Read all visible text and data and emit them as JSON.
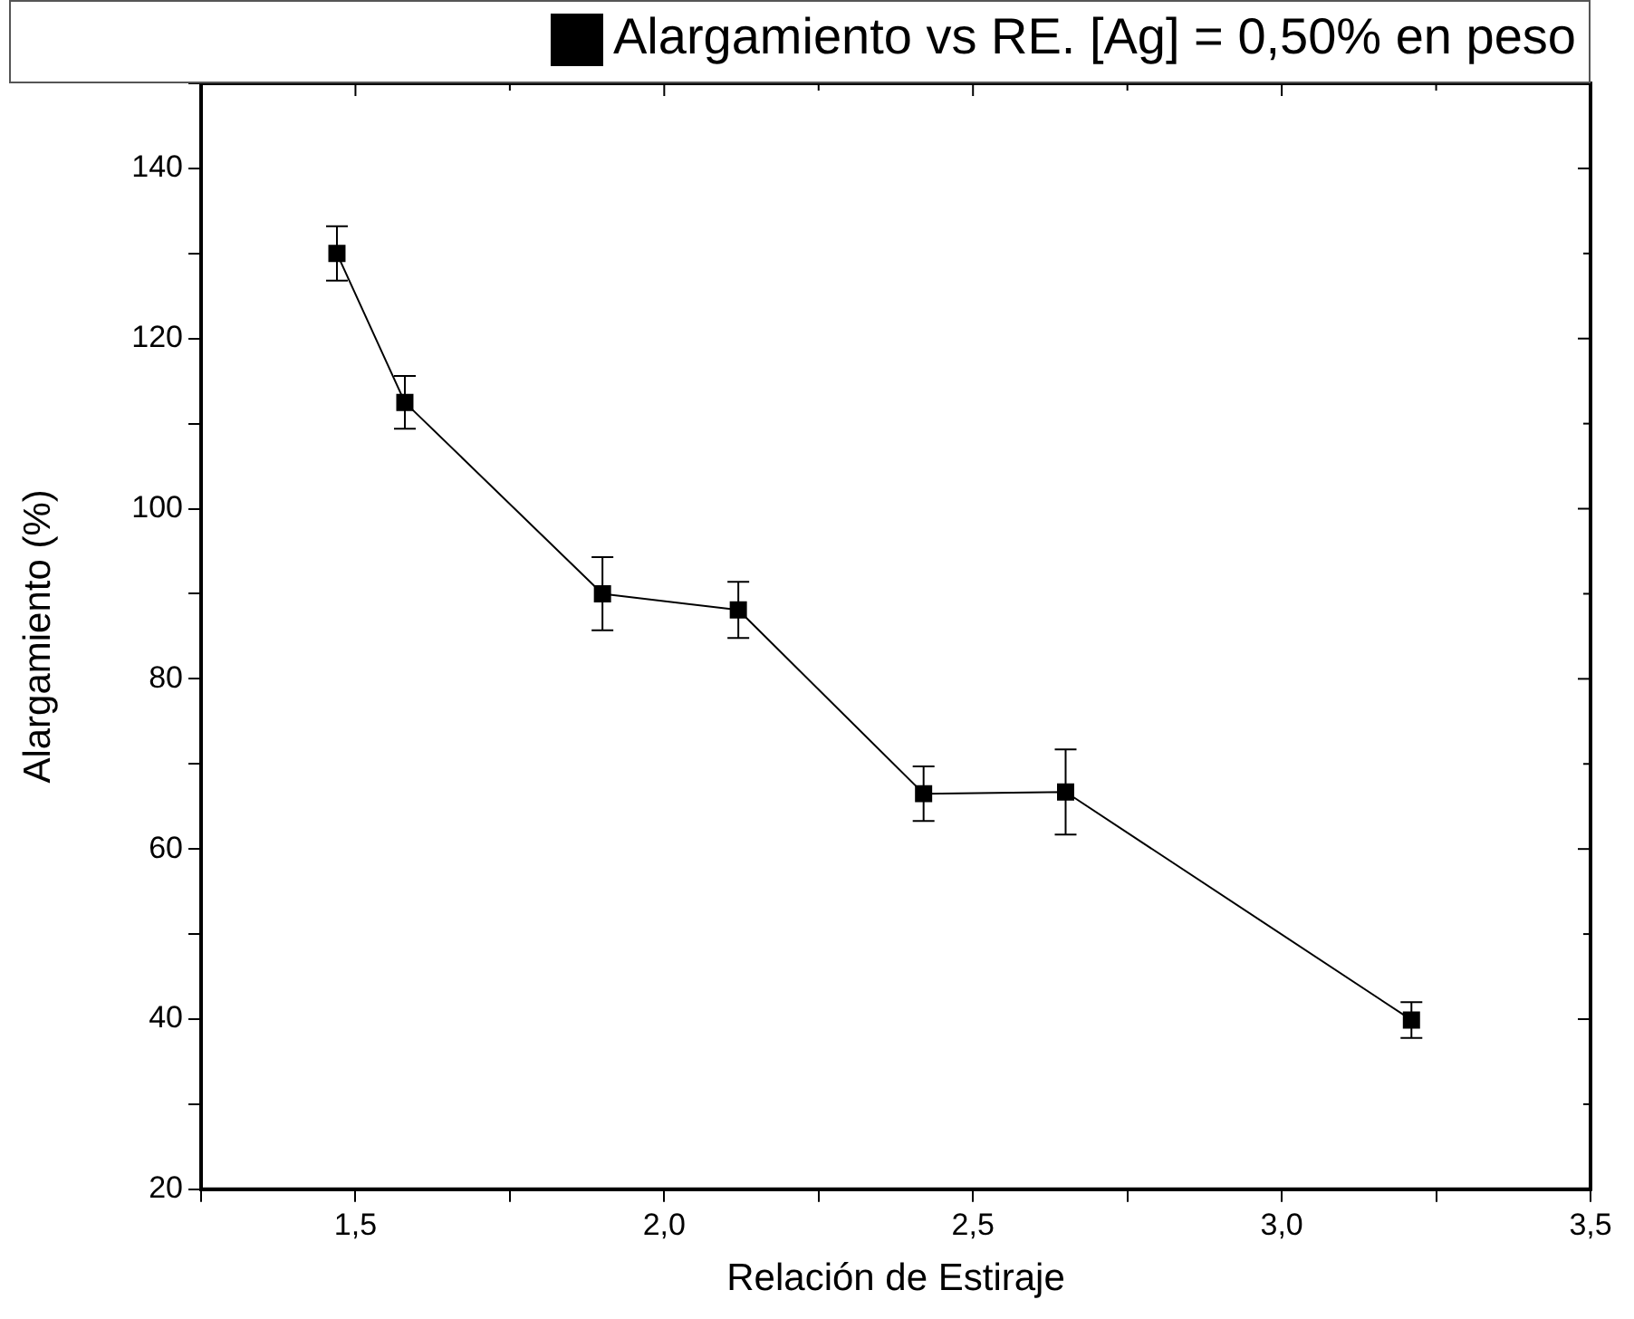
{
  "chart_data": {
    "type": "line",
    "xlabel": "Relación de Estiraje",
    "ylabel": "Alargamiento (%)",
    "x": [
      1.47,
      1.58,
      1.9,
      2.12,
      2.42,
      2.65,
      3.21
    ],
    "series": [
      {
        "name": "Alargamiento vs RE. [Ag] = 0,50% en peso",
        "color": "#000000",
        "values": [
          130,
          112.5,
          90,
          88.1,
          66.5,
          66.7,
          39.9
        ],
        "errors": [
          3.2,
          3.1,
          4.3,
          3.3,
          3.2,
          5,
          2.1
        ]
      }
    ],
    "xlim": [
      1.25,
      3.5
    ],
    "xticks": [
      {
        "value": 1.25,
        "label": null
      },
      {
        "value": 1.5,
        "label": "1,5"
      },
      {
        "value": 1.75,
        "label": null
      },
      {
        "value": 2,
        "label": "2,0"
      },
      {
        "value": 2.25,
        "label": null
      },
      {
        "value": 2.5,
        "label": "2,5"
      },
      {
        "value": 2.75,
        "label": null
      },
      {
        "value": 3,
        "label": "3,0"
      },
      {
        "value": 3.25,
        "label": null
      },
      {
        "value": 3.5,
        "label": "3,5"
      }
    ],
    "ylim": [
      20,
      150
    ],
    "yticks": [
      20,
      {
        "value": 30,
        "label": null
      },
      40,
      {
        "value": 50,
        "label": null
      },
      60,
      {
        "value": 70,
        "label": null
      },
      80,
      {
        "value": 90,
        "label": null
      },
      100,
      {
        "value": 110,
        "label": null
      },
      120,
      {
        "value": 130,
        "label": null
      },
      140,
      {
        "value": 150,
        "label": null
      }
    ],
    "legend": "top",
    "marker": "square",
    "line_style": "solid",
    "grid": false
  }
}
